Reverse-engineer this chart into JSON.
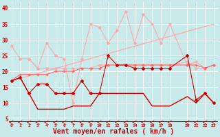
{
  "background_color": "#c8eaea",
  "grid_color": "#ffffff",
  "xlabel": "Vent moyen/en rafales ( km/h )",
  "xlabel_color": "#cc0000",
  "xlabel_fontsize": 7,
  "xticks": [
    0,
    1,
    2,
    3,
    4,
    5,
    6,
    7,
    8,
    9,
    10,
    11,
    12,
    13,
    14,
    15,
    16,
    17,
    18,
    20,
    21,
    22,
    23
  ],
  "yticks": [
    5,
    10,
    15,
    20,
    25,
    30,
    35,
    40
  ],
  "ylim": [
    3.5,
    42
  ],
  "xlim": [
    -0.3,
    23.5
  ],
  "lines": [
    {
      "x": [
        0,
        1,
        2,
        3,
        4,
        5,
        6,
        7,
        8,
        9,
        10,
        11,
        12,
        13,
        14,
        15,
        16,
        17,
        18,
        20,
        21,
        22,
        23
      ],
      "y": [
        28,
        24,
        24,
        21,
        21,
        21,
        21,
        21,
        21,
        21,
        22,
        22,
        22,
        22,
        22,
        22,
        22,
        22,
        22,
        23,
        21,
        21,
        22
      ],
      "color": "#ffaaaa",
      "marker": "D",
      "markersize": 1.8,
      "linewidth": 0.8,
      "zorder": 2
    },
    {
      "x": [
        0,
        23
      ],
      "y": [
        17,
        35
      ],
      "color": "#ffaaaa",
      "marker": null,
      "markersize": 0,
      "linewidth": 0.9,
      "zorder": 1
    },
    {
      "x": [
        2,
        3,
        4,
        5,
        6,
        7,
        8,
        9,
        10,
        11,
        12,
        13,
        14,
        15,
        16,
        17,
        18,
        20,
        21,
        22,
        23
      ],
      "y": [
        24,
        21,
        29,
        25,
        24,
        10,
        24,
        35,
        34,
        29,
        33,
        39,
        29,
        38,
        35,
        29,
        35,
        22,
        23,
        21,
        22
      ],
      "color": "#ffaaaa",
      "marker": "D",
      "markersize": 1.8,
      "linewidth": 0.8,
      "zorder": 2
    },
    {
      "x": [
        0,
        1,
        2,
        3,
        4,
        5,
        6,
        7,
        8,
        9,
        10,
        11,
        12,
        13,
        14,
        15,
        16,
        17,
        18,
        20,
        21,
        22,
        23
      ],
      "y": [
        17,
        19,
        19,
        19,
        19,
        20,
        20,
        20,
        21,
        21,
        21,
        22,
        22,
        22,
        22,
        22,
        22,
        22,
        22,
        22,
        22,
        21,
        22
      ],
      "color": "#ff6666",
      "marker": "+",
      "markersize": 3,
      "linewidth": 0.8,
      "zorder": 3
    },
    {
      "x": [
        0,
        1,
        2,
        3,
        4,
        5,
        6,
        7,
        8,
        9,
        10,
        11,
        12,
        13,
        14,
        15,
        16,
        17,
        18,
        20,
        21,
        22,
        23
      ],
      "y": [
        17,
        18,
        13,
        16,
        16,
        13,
        13,
        13,
        17,
        13,
        13,
        25,
        22,
        22,
        21,
        21,
        21,
        21,
        21,
        25,
        11,
        13,
        10
      ],
      "color": "#cc0000",
      "marker": "D",
      "markersize": 2,
      "linewidth": 0.8,
      "zorder": 3
    },
    {
      "x": [
        0,
        1,
        2,
        3,
        4,
        5,
        6,
        7,
        8,
        9,
        10,
        11,
        12,
        13,
        14,
        15,
        16,
        17,
        18,
        20,
        21,
        22,
        23
      ],
      "y": [
        17,
        18,
        13,
        8,
        8,
        8,
        8,
        9,
        9,
        9,
        13,
        13,
        13,
        13,
        13,
        13,
        9,
        9,
        9,
        12,
        10,
        13,
        10
      ],
      "color": "#cc0000",
      "marker": null,
      "markersize": 0,
      "linewidth": 1.0,
      "zorder": 2
    }
  ]
}
